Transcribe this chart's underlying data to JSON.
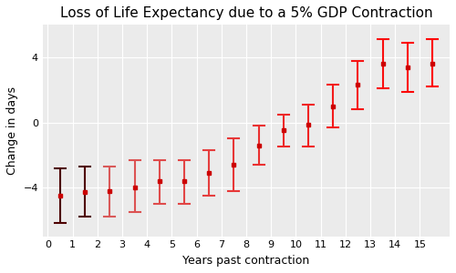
{
  "title": "Loss of Life Expectancy due to a 5% GDP Contraction",
  "xlabel": "Years past contraction",
  "ylabel": "Change in days",
  "x": [
    0.5,
    1.5,
    2.5,
    3.5,
    4.5,
    5.5,
    6.5,
    7.5,
    8.5,
    9.5,
    10.5,
    11.5,
    12.5,
    13.5,
    14.5,
    15.5
  ],
  "y": [
    -4.5,
    -4.3,
    -4.2,
    -4.0,
    -3.6,
    -3.6,
    -3.1,
    -2.6,
    -1.4,
    -0.5,
    -0.15,
    1.0,
    2.3,
    3.6,
    3.4,
    3.6
  ],
  "y_upper": [
    -2.8,
    -2.7,
    -2.7,
    -2.3,
    -2.3,
    -2.3,
    -1.7,
    -1.0,
    -0.2,
    0.5,
    1.1,
    2.3,
    3.8,
    5.1,
    4.9,
    5.1
  ],
  "y_lower": [
    -6.2,
    -5.8,
    -5.8,
    -5.5,
    -5.0,
    -5.0,
    -4.5,
    -4.2,
    -2.6,
    -1.5,
    -1.5,
    -0.3,
    0.8,
    2.1,
    1.9,
    2.2
  ],
  "background_color": "#ffffff",
  "panel_color": "#ebebeb",
  "grid_color": "#ffffff",
  "point_color_red": "#cc0000",
  "xlim": [
    -0.2,
    16.2
  ],
  "ylim": [
    -7,
    6
  ],
  "xticks": [
    0,
    1,
    2,
    3,
    4,
    5,
    6,
    7,
    8,
    9,
    10,
    11,
    12,
    13,
    14,
    15
  ],
  "yticks": [
    -4,
    0,
    4
  ],
  "title_fontsize": 11,
  "axis_fontsize": 9,
  "tick_fontsize": 8,
  "figsize": [
    5.0,
    3.0
  ],
  "dpi": 100
}
